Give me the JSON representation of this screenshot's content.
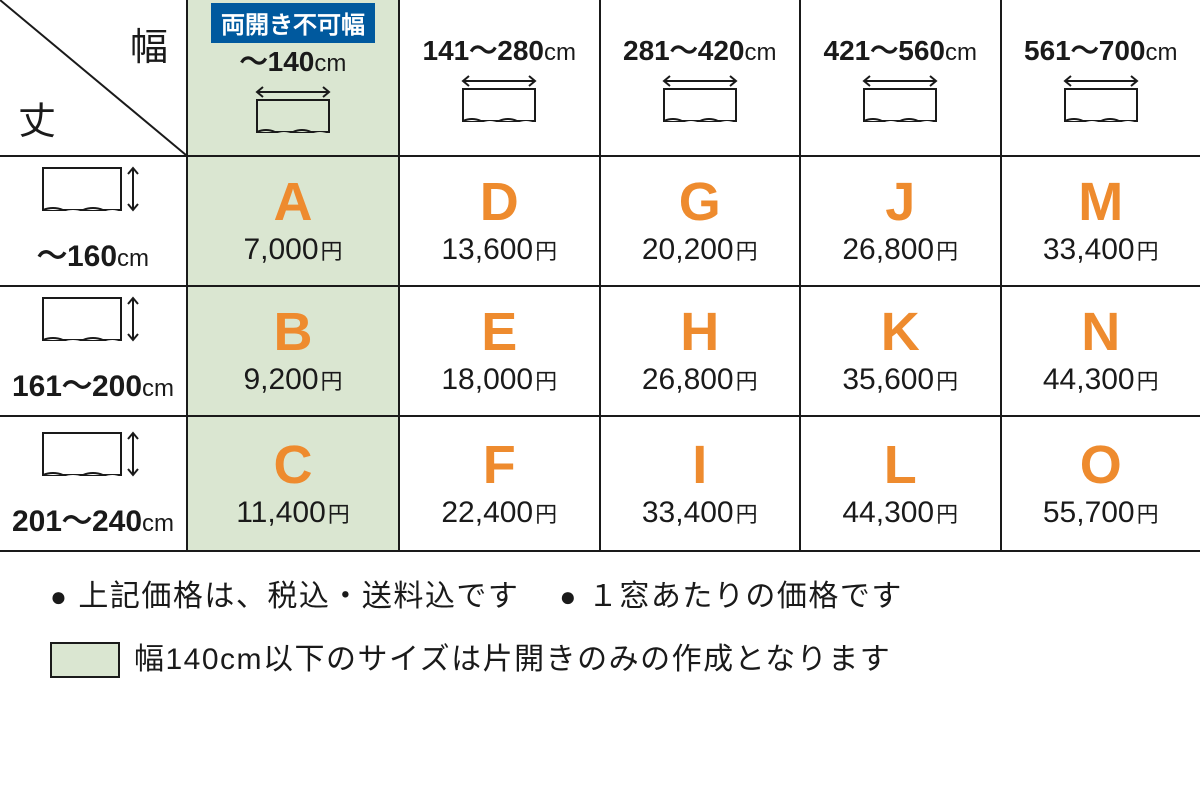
{
  "corner": {
    "width_axis": "幅",
    "height_axis": "丈"
  },
  "badge_text": "両開き不可幅",
  "width_headers": [
    {
      "range": "～140",
      "unit": "cm",
      "highlighted": true,
      "has_badge": true
    },
    {
      "range": "141～280",
      "unit": "cm",
      "highlighted": false,
      "has_badge": false
    },
    {
      "range": "281～420",
      "unit": "cm",
      "highlighted": false,
      "has_badge": false
    },
    {
      "range": "421～560",
      "unit": "cm",
      "highlighted": false,
      "has_badge": false
    },
    {
      "range": "561～700",
      "unit": "cm",
      "highlighted": false,
      "has_badge": false
    }
  ],
  "height_headers": [
    {
      "range": "～160",
      "unit": "cm"
    },
    {
      "range": "161～200",
      "unit": "cm"
    },
    {
      "range": "201～240",
      "unit": "cm"
    }
  ],
  "price_rows": [
    [
      {
        "letter": "A",
        "price": "7,000",
        "yen": "円",
        "highlighted": true
      },
      {
        "letter": "D",
        "price": "13,600",
        "yen": "円",
        "highlighted": false
      },
      {
        "letter": "G",
        "price": "20,200",
        "yen": "円",
        "highlighted": false
      },
      {
        "letter": "J",
        "price": "26,800",
        "yen": "円",
        "highlighted": false
      },
      {
        "letter": "M",
        "price": "33,400",
        "yen": "円",
        "highlighted": false
      }
    ],
    [
      {
        "letter": "B",
        "price": "9,200",
        "yen": "円",
        "highlighted": true
      },
      {
        "letter": "E",
        "price": "18,000",
        "yen": "円",
        "highlighted": false
      },
      {
        "letter": "H",
        "price": "26,800",
        "yen": "円",
        "highlighted": false
      },
      {
        "letter": "K",
        "price": "35,600",
        "yen": "円",
        "highlighted": false
      },
      {
        "letter": "N",
        "price": "44,300",
        "yen": "円",
        "highlighted": false
      }
    ],
    [
      {
        "letter": "C",
        "price": "11,400",
        "yen": "円",
        "highlighted": true
      },
      {
        "letter": "F",
        "price": "22,400",
        "yen": "円",
        "highlighted": false
      },
      {
        "letter": "I",
        "price": "33,400",
        "yen": "円",
        "highlighted": false
      },
      {
        "letter": "L",
        "price": "44,300",
        "yen": "円",
        "highlighted": false
      },
      {
        "letter": "O",
        "price": "55,700",
        "yen": "円",
        "highlighted": false
      }
    ]
  ],
  "notes": {
    "bullet": "●",
    "note1": "上記価格は、税込・送料込です",
    "note2": "１窓あたりの価格です",
    "note3": "幅140cm以下のサイズは片開きのみの作成となります"
  },
  "colors": {
    "letter_color": "#ee8b2e",
    "highlight_bg": "#dae6d1",
    "badge_bg": "#00599e",
    "text_color": "#1a1a1a"
  }
}
